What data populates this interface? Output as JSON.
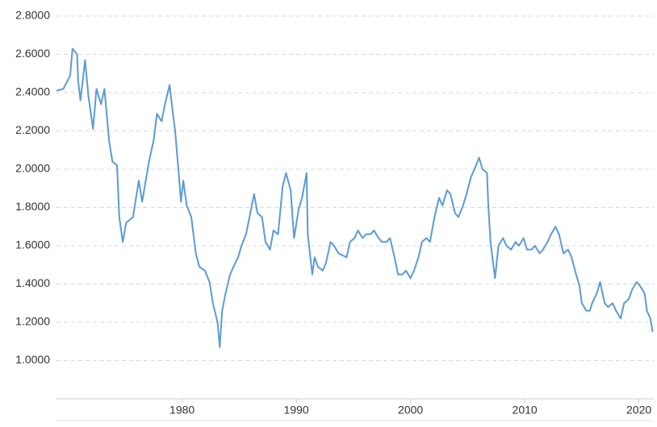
{
  "chart_data": {
    "type": "line",
    "x": [
      1969.0,
      1969.6,
      1970.2,
      1970.4,
      1970.8,
      1970.9,
      1971.1,
      1971.5,
      1971.8,
      1972.2,
      1972.5,
      1972.9,
      1973.2,
      1973.6,
      1973.9,
      1974.3,
      1974.5,
      1974.8,
      1975.1,
      1975.7,
      1976.2,
      1976.5,
      1977.1,
      1977.5,
      1977.8,
      1978.2,
      1978.5,
      1978.9,
      1979.1,
      1979.4,
      1979.7,
      1979.9,
      1980.1,
      1980.4,
      1980.8,
      1981.2,
      1981.5,
      1982.0,
      1982.4,
      1982.7,
      1983.1,
      1983.3,
      1983.5,
      1983.8,
      1984.2,
      1984.5,
      1984.9,
      1985.2,
      1985.6,
      1985.9,
      1986.3,
      1986.6,
      1987.0,
      1987.3,
      1987.7,
      1988.0,
      1988.4,
      1988.8,
      1989.1,
      1989.5,
      1989.8,
      1990.2,
      1990.5,
      1990.9,
      1991.0,
      1991.4,
      1991.6,
      1991.9,
      1992.3,
      1992.6,
      1993.0,
      1993.3,
      1993.7,
      1994.4,
      1994.7,
      1995.1,
      1995.4,
      1995.8,
      1996.1,
      1996.5,
      1996.8,
      1997.2,
      1997.5,
      1997.9,
      1998.2,
      1998.6,
      1998.9,
      1999.3,
      1999.6,
      2000.0,
      2000.3,
      2000.7,
      2001.0,
      2001.4,
      2001.7,
      2002.1,
      2002.5,
      2002.8,
      2003.2,
      2003.5,
      2003.9,
      2004.2,
      2004.6,
      2004.9,
      2005.3,
      2005.6,
      2006.0,
      2006.3,
      2006.7,
      2006.8,
      2007.0,
      2007.4,
      2007.7,
      2008.1,
      2008.4,
      2008.8,
      2009.2,
      2009.5,
      2009.9,
      2010.2,
      2010.6,
      2010.9,
      2011.3,
      2011.6,
      2012.0,
      2012.3,
      2012.7,
      2013.0,
      2013.4,
      2013.8,
      2014.1,
      2014.5,
      2014.8,
      2015.0,
      2015.4,
      2015.7,
      2015.9,
      2016.3,
      2016.6,
      2017.0,
      2017.3,
      2017.7,
      2018.0,
      2018.4,
      2018.7,
      2019.1,
      2019.4,
      2019.8,
      2020.1,
      2020.5,
      2020.7,
      2021.0,
      2021.2
    ],
    "series": [
      {
        "color": "#5b9bd5",
        "values": [
          2.41,
          2.42,
          2.49,
          2.63,
          2.6,
          2.46,
          2.36,
          2.57,
          2.38,
          2.21,
          2.42,
          2.34,
          2.42,
          2.15,
          2.04,
          2.02,
          1.75,
          1.62,
          1.72,
          1.75,
          1.94,
          1.83,
          2.04,
          2.15,
          2.29,
          2.25,
          2.34,
          2.44,
          2.34,
          2.19,
          1.98,
          1.83,
          1.94,
          1.81,
          1.75,
          1.56,
          1.49,
          1.47,
          1.41,
          1.3,
          1.2,
          1.07,
          1.26,
          1.35,
          1.45,
          1.49,
          1.54,
          1.6,
          1.66,
          1.75,
          1.87,
          1.77,
          1.75,
          1.62,
          1.58,
          1.68,
          1.66,
          1.91,
          1.98,
          1.89,
          1.64,
          1.79,
          1.85,
          1.98,
          1.66,
          1.45,
          1.54,
          1.49,
          1.47,
          1.51,
          1.62,
          1.6,
          1.56,
          1.54,
          1.62,
          1.64,
          1.68,
          1.64,
          1.66,
          1.66,
          1.68,
          1.64,
          1.62,
          1.62,
          1.64,
          1.54,
          1.45,
          1.45,
          1.47,
          1.43,
          1.47,
          1.54,
          1.62,
          1.64,
          1.62,
          1.75,
          1.85,
          1.81,
          1.89,
          1.87,
          1.77,
          1.75,
          1.81,
          1.87,
          1.96,
          2.0,
          2.06,
          2.0,
          1.98,
          1.83,
          1.62,
          1.43,
          1.6,
          1.64,
          1.6,
          1.58,
          1.62,
          1.6,
          1.64,
          1.58,
          1.58,
          1.6,
          1.56,
          1.58,
          1.62,
          1.66,
          1.7,
          1.66,
          1.56,
          1.58,
          1.54,
          1.45,
          1.39,
          1.3,
          1.26,
          1.26,
          1.3,
          1.35,
          1.41,
          1.3,
          1.28,
          1.3,
          1.26,
          1.22,
          1.3,
          1.32,
          1.37,
          1.41,
          1.39,
          1.35,
          1.26,
          1.22,
          1.15
        ]
      }
    ],
    "xlim": [
      1969,
      2021.3
    ],
    "xticks": [
      1980,
      1990,
      2000,
      2010,
      2020
    ],
    "ylim": [
      0.8,
      2.8
    ],
    "yticks": [
      {
        "value": 1.0,
        "label": "1.0000"
      },
      {
        "value": 1.2,
        "label": "1.2000"
      },
      {
        "value": 1.4,
        "label": "1.4000"
      },
      {
        "value": 1.6,
        "label": "1.6000"
      },
      {
        "value": 1.8,
        "label": "1.8000"
      },
      {
        "value": 2.0,
        "label": "2.0000"
      },
      {
        "value": 2.2,
        "label": "2.2000"
      },
      {
        "value": 2.4,
        "label": "2.4000"
      },
      {
        "value": 2.6,
        "label": "2.6000"
      },
      {
        "value": 2.8,
        "label": "2.8000"
      }
    ],
    "grid": true
  }
}
